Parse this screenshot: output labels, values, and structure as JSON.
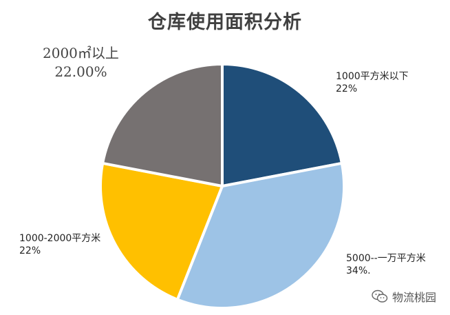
{
  "chart_data": {
    "type": "pie",
    "title": "仓库使用面积分析",
    "slices": [
      {
        "label": "1000平方米以下",
        "value": 22,
        "display": "22%",
        "color": "#1F4E79"
      },
      {
        "label": "5000--一万平方米",
        "value": 34,
        "display": "34%.",
        "color": "#9DC3E6"
      },
      {
        "label": "1000-2000平方米",
        "value": 22,
        "display": "22%",
        "color": "#FFC000"
      },
      {
        "label": "2000㎡以上",
        "value": 22,
        "display": "22.00%",
        "color": "#767171"
      }
    ],
    "start_angle_deg": 0,
    "direction": "clockwise",
    "legend": "none"
  },
  "watermark": {
    "icon": "wechat-icon",
    "text": "物流桃园"
  }
}
